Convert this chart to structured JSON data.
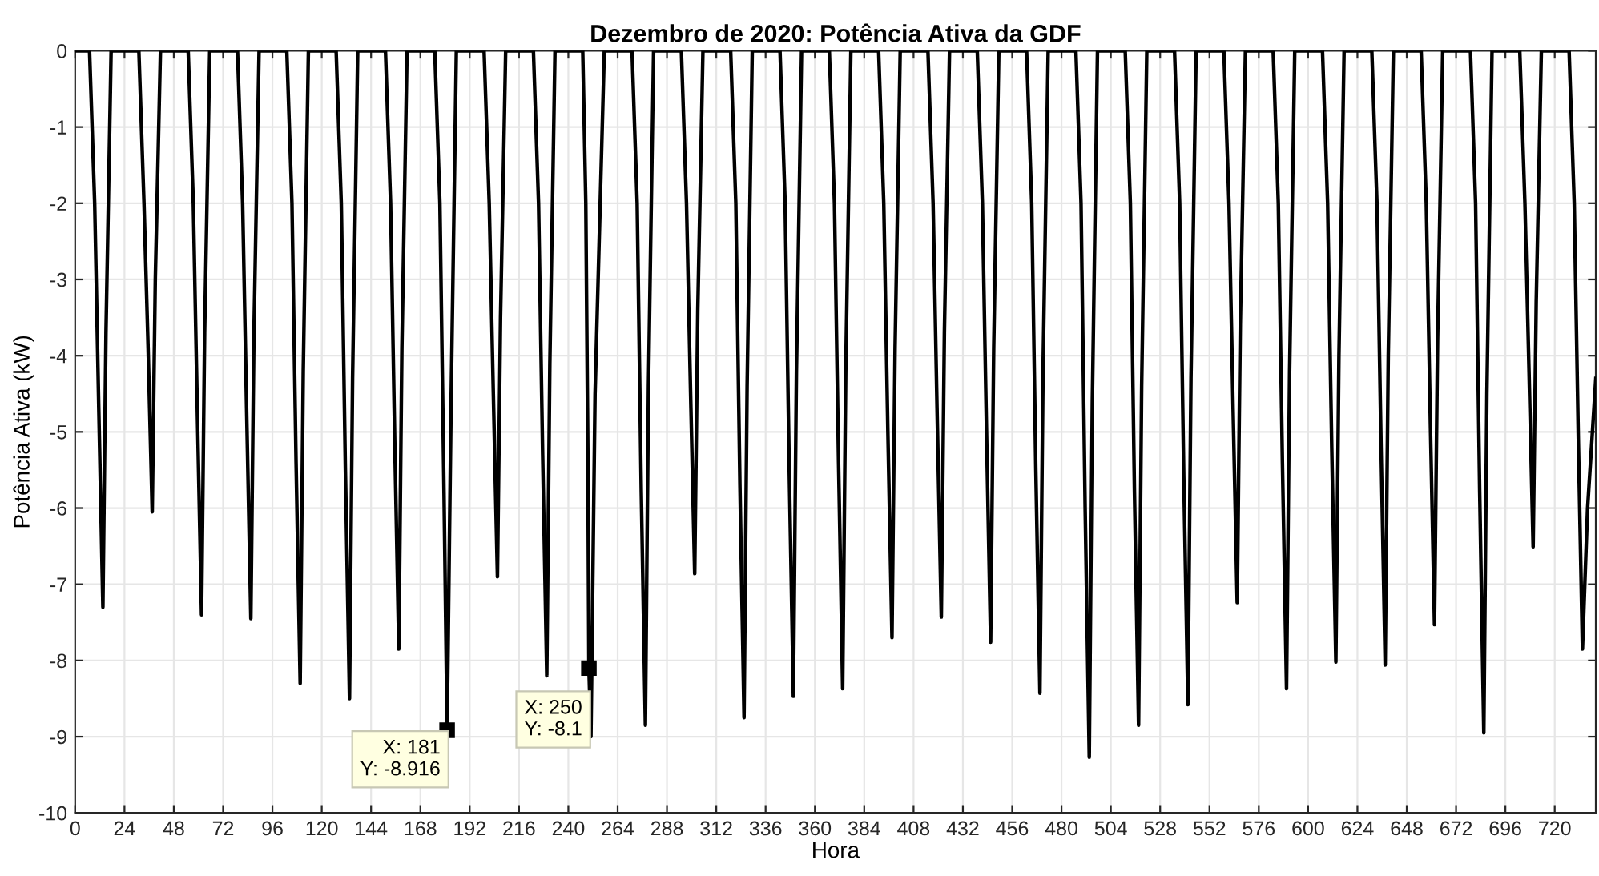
{
  "chart_data": {
    "type": "line",
    "title": "Dezembro de 2020: Potência Ativa da GDF",
    "xlabel": "Hora",
    "ylabel": "Potência Ativa (kW)",
    "series": [
      {
        "color": "#000000",
        "x": [
          0,
          7,
          9.5,
          11.5,
          13.5,
          15,
          17.5,
          31,
          33.5,
          35.5,
          37.5,
          39,
          41.5,
          55,
          57.5,
          59.5,
          61.5,
          63,
          65.5,
          79,
          81.5,
          83.5,
          85.5,
          87,
          89.5,
          103,
          105.5,
          107.5,
          109.5,
          111,
          113.5,
          127,
          129.5,
          131.5,
          133.5,
          135,
          137.5,
          151,
          153.5,
          155.5,
          157.5,
          159,
          161.5,
          175,
          177.5,
          179.5,
          181,
          183,
          185.5,
          199,
          201.5,
          203.5,
          205.5,
          207,
          209.5,
          223,
          225.5,
          227.5,
          229.5,
          231,
          233.5,
          247,
          248.5,
          249.5,
          250,
          251,
          253,
          257.5,
          271,
          273.5,
          275.5,
          277.5,
          279,
          281.5,
          295,
          297.5,
          299.5,
          301.5,
          303,
          305.5,
          319,
          321.5,
          323.5,
          325.5,
          327,
          329.5,
          343,
          345.5,
          347.5,
          349.5,
          351,
          353.5,
          367,
          369.5,
          371.5,
          373.5,
          375,
          377.5,
          391,
          393.5,
          395.5,
          397.5,
          399,
          401.5,
          415,
          417.5,
          419.5,
          421.5,
          423,
          425.5,
          439,
          441.5,
          443.5,
          445.5,
          447,
          449.5,
          463,
          465.5,
          467.5,
          469.5,
          471,
          473.5,
          487,
          489.5,
          491.5,
          493.5,
          495,
          497.5,
          511,
          513.5,
          515.5,
          517.5,
          519,
          521.5,
          535,
          537.5,
          539.5,
          541.5,
          543,
          545.5,
          559,
          561.5,
          563.5,
          565.5,
          567,
          569.5,
          583,
          585.5,
          587.5,
          589.5,
          591,
          593.5,
          607,
          609.5,
          611.5,
          613.5,
          615,
          617.5,
          631,
          633.5,
          635.5,
          637.5,
          639,
          641.5,
          655,
          657.5,
          659.5,
          661.5,
          663,
          665.5,
          679,
          681.5,
          683.5,
          685.5,
          687,
          689.5,
          703,
          705.5,
          707.5,
          709.5,
          711,
          713.5,
          727,
          729.5,
          731.5,
          733.5,
          736,
          740
        ],
        "values": [
          0,
          0,
          -2,
          -4.7,
          -7.3,
          -3.7,
          0,
          0,
          -2,
          -3.9,
          -6.05,
          -3.0,
          0,
          0,
          -2,
          -4.8,
          -7.4,
          -3.7,
          0,
          0,
          -2,
          -4.8,
          -7.45,
          -3.7,
          0,
          0,
          -2,
          -5.4,
          -8.3,
          -4.2,
          0,
          0,
          -2,
          -5.5,
          -8.5,
          -4.3,
          0,
          0,
          -2,
          -5.1,
          -7.85,
          -3.9,
          0,
          0,
          -2,
          -5.8,
          -8.916,
          -4.5,
          0,
          0,
          -2,
          -4.5,
          -6.9,
          -3.5,
          0,
          0,
          -2,
          -5.3,
          -8.2,
          -4.1,
          0,
          0,
          -2,
          -5.3,
          -8.1,
          -9.0,
          -4.5,
          0,
          0,
          -2,
          -5.8,
          -8.85,
          -4.4,
          0,
          0,
          -2,
          -4.5,
          -6.86,
          -3.4,
          0,
          0,
          -2,
          -5.7,
          -8.75,
          -4.4,
          0,
          0,
          -2,
          -5.5,
          -8.47,
          -4.2,
          0,
          0,
          -2,
          -5.4,
          -8.37,
          -4.2,
          0,
          0,
          -2,
          -5.0,
          -7.7,
          -3.9,
          0,
          0,
          -2,
          -4.8,
          -7.43,
          -3.7,
          0,
          0,
          -2,
          -5.0,
          -7.76,
          -3.9,
          0,
          0,
          -2,
          -5.5,
          -8.43,
          -4.2,
          0,
          0,
          -2,
          -6.0,
          -9.27,
          -4.6,
          0,
          0,
          -2,
          -5.8,
          -8.85,
          -4.4,
          0,
          0,
          -2,
          -5.6,
          -8.58,
          -4.3,
          0,
          0,
          -2,
          -4.7,
          -7.24,
          -3.6,
          0,
          0,
          -2,
          -5.4,
          -8.37,
          -4.2,
          0,
          0,
          -2,
          -5.2,
          -8.02,
          -4.0,
          0,
          0,
          -2,
          -5.2,
          -8.06,
          -4.0,
          0,
          0,
          -2,
          -4.9,
          -7.53,
          -3.8,
          0,
          0,
          -2,
          -5.8,
          -8.95,
          -4.5,
          0,
          0,
          -2,
          -4.2,
          -6.51,
          -3.3,
          0,
          0,
          -2,
          -5.1,
          -7.85,
          -6.0,
          -4.3
        ]
      }
    ],
    "annotations": [
      {
        "text": "X: 181\nY: -8.916",
        "x": 181,
        "y": -8.916
      },
      {
        "text": "X: 250\nY: -8.1",
        "x": 250,
        "y": -8.1
      }
    ],
    "xlim": [
      0,
      740
    ],
    "ylim": [
      -10,
      0
    ],
    "xticks": [
      0,
      24,
      48,
      72,
      96,
      120,
      144,
      168,
      192,
      216,
      240,
      264,
      288,
      312,
      336,
      360,
      384,
      408,
      432,
      456,
      480,
      504,
      528,
      552,
      576,
      600,
      624,
      648,
      672,
      696,
      720
    ],
    "yticks": [
      -10,
      -9,
      -8,
      -7,
      -6,
      -5,
      -4,
      -3,
      -2,
      -1,
      0
    ],
    "grid": true,
    "marker": "none",
    "line_style": "solid"
  }
}
